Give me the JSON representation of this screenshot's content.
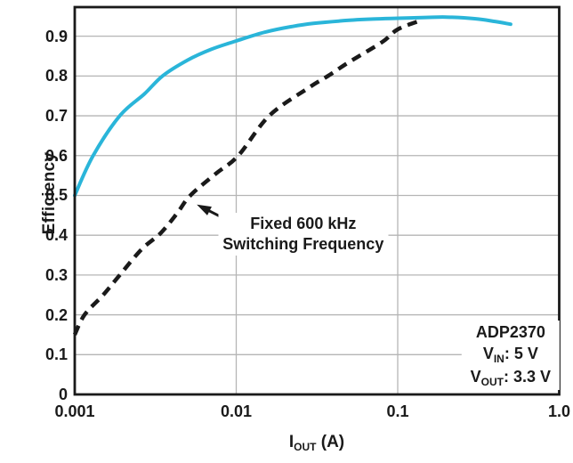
{
  "chart_data": {
    "type": "line",
    "title": "",
    "ylabel": "Efficiency",
    "xlabel": {
      "pre": "I",
      "sub": "OUT",
      "post": " (A)"
    },
    "x_scale": "log",
    "xlim": [
      0.001,
      1.0
    ],
    "ylim": [
      0,
      0.973
    ],
    "grid": true,
    "legend_position": "none",
    "y_ticks": [
      {
        "value": 0.0,
        "label": "0"
      },
      {
        "value": 0.1,
        "label": "0.1"
      },
      {
        "value": 0.2,
        "label": "0.2"
      },
      {
        "value": 0.3,
        "label": "0.3"
      },
      {
        "value": 0.4,
        "label": "0.4"
      },
      {
        "value": 0.5,
        "label": "0.5"
      },
      {
        "value": 0.6,
        "label": "0.6"
      },
      {
        "value": 0.7,
        "label": "0.7"
      },
      {
        "value": 0.8,
        "label": "0.8"
      },
      {
        "value": 0.9,
        "label": "0.9"
      }
    ],
    "x_ticks": [
      {
        "value": 0.001,
        "label": "0.001"
      },
      {
        "value": 0.01,
        "label": "0.01"
      },
      {
        "value": 0.1,
        "label": "0.1"
      },
      {
        "value": 1.0,
        "label": "1.0"
      }
    ],
    "x_gridlines": [
      0.01,
      0.1
    ],
    "series": [
      {
        "name": "solid-cyan-curve",
        "style": "solid",
        "color": "#2ab5d9",
        "width": 4,
        "points": [
          [
            0.001,
            0.5
          ],
          [
            0.0013,
            0.6
          ],
          [
            0.0019,
            0.7
          ],
          [
            0.0027,
            0.755
          ],
          [
            0.0035,
            0.8
          ],
          [
            0.005,
            0.84
          ],
          [
            0.007,
            0.867
          ],
          [
            0.01,
            0.888
          ],
          [
            0.015,
            0.91
          ],
          [
            0.022,
            0.924
          ],
          [
            0.03,
            0.932
          ],
          [
            0.05,
            0.94
          ],
          [
            0.07,
            0.943
          ],
          [
            0.1,
            0.945
          ],
          [
            0.15,
            0.947
          ],
          [
            0.2,
            0.948
          ],
          [
            0.3,
            0.944
          ],
          [
            0.4,
            0.937
          ],
          [
            0.5,
            0.93
          ]
        ]
      },
      {
        "name": "fixed-600khz-dashed-curve",
        "style": "dashed",
        "color": "#1a1a1a",
        "width": 4.5,
        "points": [
          [
            0.001,
            0.15
          ],
          [
            0.00115,
            0.2
          ],
          [
            0.0015,
            0.25
          ],
          [
            0.0019,
            0.3
          ],
          [
            0.0026,
            0.365
          ],
          [
            0.0034,
            0.405
          ],
          [
            0.0043,
            0.455
          ],
          [
            0.0052,
            0.5
          ],
          [
            0.0075,
            0.555
          ],
          [
            0.0103,
            0.6
          ],
          [
            0.016,
            0.7
          ],
          [
            0.028,
            0.77
          ],
          [
            0.037,
            0.8
          ],
          [
            0.05,
            0.835
          ],
          [
            0.08,
            0.885
          ],
          [
            0.1,
            0.917
          ],
          [
            0.14,
            0.94
          ]
        ]
      }
    ],
    "annotations": {
      "curve_label": {
        "lines": [
          "Fixed 600 kHz",
          "Switching Frequency"
        ],
        "x": 0.026,
        "y": 0.42,
        "arrow_tail": {
          "x": 0.0102,
          "y": 0.425
        },
        "arrow_tip": {
          "x": 0.0057,
          "y": 0.477
        }
      },
      "info_box": {
        "line1": {
          "pre": "ADP2370",
          "sub": "",
          "post": ""
        },
        "line2": {
          "pre": "V",
          "sub": "IN",
          "post": ": 5 V"
        },
        "line3": {
          "pre": "V",
          "sub": "OUT",
          "post": ": 3.3 V"
        },
        "x": 0.5,
        "y": 0.103
      }
    },
    "colors": {
      "background": "#ffffff",
      "grid": "#b5b5b5",
      "axis": "#1a1a1a",
      "text": "#1a1a1a"
    }
  }
}
